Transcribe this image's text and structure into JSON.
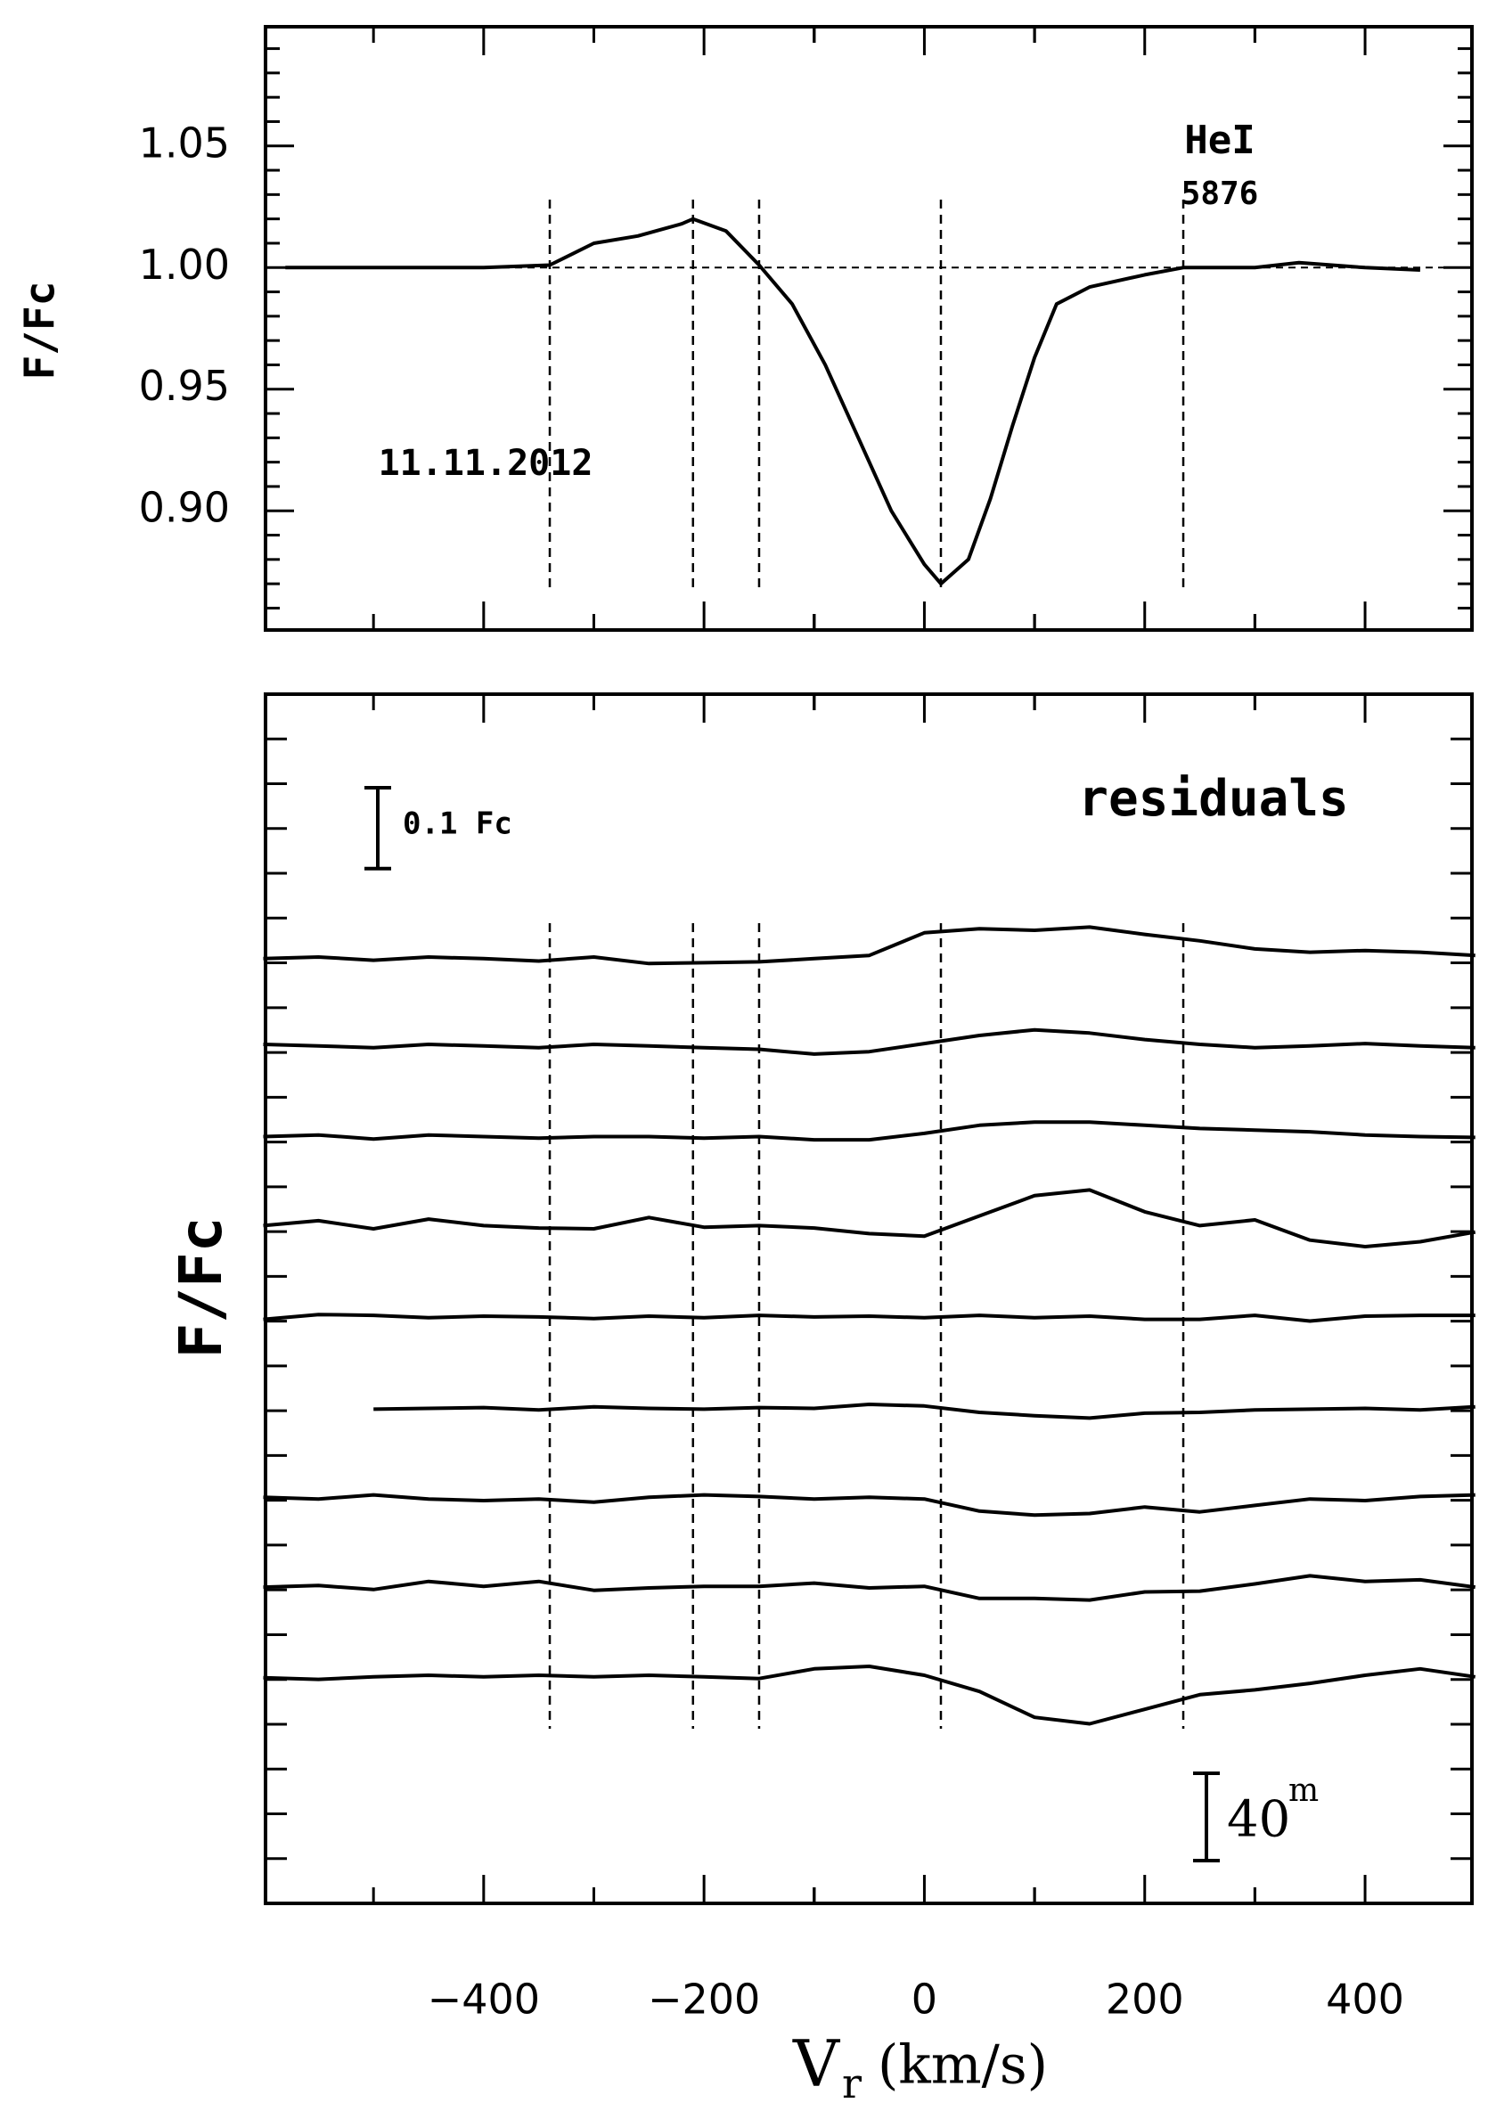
{
  "chart_data": [
    {
      "type": "line",
      "ylabel": "F/Fc",
      "annotations": [
        "HeI",
        "5876",
        "11.11.2012"
      ],
      "xlim": [
        -598,
        497
      ],
      "ylim": [
        0.851,
        1.099
      ],
      "xticks": [
        -400,
        -200,
        0,
        200,
        400
      ],
      "yticks": [
        {
          "value": 0.9,
          "label": "0.90"
        },
        0.95,
        {
          "value": 1.0,
          "label": "1.00"
        },
        1.05
      ],
      "hline": 1.0,
      "vlines": [
        -340,
        -210,
        -150,
        15,
        235
      ],
      "x": [
        -580,
        -500,
        -400,
        -340,
        -300,
        -260,
        -220,
        -210,
        -180,
        -150,
        -120,
        -90,
        -60,
        -30,
        0,
        15,
        40,
        60,
        80,
        100,
        120,
        150,
        200,
        235,
        300,
        340,
        400,
        450
      ],
      "series": [
        {
          "color": "#000000",
          "values": [
            1.0,
            1.0,
            1.0,
            1.001,
            1.01,
            1.013,
            1.018,
            1.02,
            1.015,
            1.001,
            0.985,
            0.96,
            0.93,
            0.9,
            0.878,
            0.87,
            0.88,
            0.905,
            0.935,
            0.963,
            0.985,
            0.992,
            0.997,
            1.0,
            1.0,
            1.002,
            1.0,
            0.999
          ]
        }
      ]
    },
    {
      "type": "line",
      "ylabel": "F/Fc",
      "annotations": [
        "residuals"
      ],
      "scale_bar": {
        "value": 0.1,
        "label": "0.1 Fc"
      },
      "time_bar": {
        "number": "40",
        "unit": "m"
      },
      "xlabel": {
        "main": "V",
        "sub": "r",
        "rest": "(km/s)"
      },
      "xlim": [
        -598,
        497
      ],
      "ylim": [
        0,
        1.495
      ],
      "xticks": [
        {
          "value": -400,
          "label": "−400"
        },
        {
          "value": -200,
          "label": "−200"
        },
        0,
        200,
        400
      ],
      "vlines": [
        -340,
        -210,
        -150,
        15,
        235
      ],
      "x": [
        -600,
        -550,
        -500,
        -450,
        -400,
        -350,
        -300,
        -250,
        -200,
        -150,
        -100,
        -50,
        0,
        50,
        100,
        150,
        200,
        250,
        300,
        350,
        400,
        450,
        500
      ],
      "series": [
        {
          "color": "#000000",
          "values": [
            1.168,
            1.17,
            1.166,
            1.17,
            1.168,
            1.165,
            1.17,
            1.162,
            1.163,
            1.164,
            1.168,
            1.172,
            1.2,
            1.205,
            1.203,
            1.207,
            1.198,
            1.19,
            1.18,
            1.176,
            1.178,
            1.176,
            1.172
          ]
        },
        {
          "color": "#000000",
          "values": [
            1.062,
            1.06,
            1.058,
            1.062,
            1.06,
            1.058,
            1.062,
            1.06,
            1.058,
            1.056,
            1.05,
            1.053,
            1.063,
            1.073,
            1.08,
            1.076,
            1.068,
            1.062,
            1.058,
            1.06,
            1.063,
            1.06,
            1.058
          ]
        },
        {
          "color": "#000000",
          "values": [
            0.948,
            0.95,
            0.945,
            0.95,
            0.948,
            0.946,
            0.948,
            0.948,
            0.946,
            0.948,
            0.944,
            0.944,
            0.952,
            0.962,
            0.966,
            0.966,
            0.962,
            0.958,
            0.956,
            0.954,
            0.95,
            0.948,
            0.947
          ]
        },
        {
          "color": "#000000",
          "values": [
            0.838,
            0.844,
            0.834,
            0.846,
            0.838,
            0.835,
            0.834,
            0.848,
            0.836,
            0.838,
            0.835,
            0.828,
            0.825,
            0.85,
            0.875,
            0.882,
            0.855,
            0.838,
            0.845,
            0.82,
            0.812,
            0.818,
            0.83
          ]
        },
        {
          "color": "#000000",
          "values": [
            0.722,
            0.728,
            0.727,
            0.724,
            0.726,
            0.725,
            0.723,
            0.726,
            0.724,
            0.727,
            0.725,
            0.726,
            0.724,
            0.727,
            0.724,
            0.726,
            0.722,
            0.722,
            0.727,
            0.72,
            0.726,
            0.727,
            0.727
          ]
        },
        {
          "color": "#000000",
          "values": [
            null,
            null,
            0.611,
            0.612,
            0.613,
            0.61,
            0.614,
            0.612,
            0.611,
            0.613,
            0.612,
            0.617,
            0.615,
            0.607,
            0.603,
            0.6,
            0.606,
            0.607,
            0.61,
            0.611,
            0.612,
            0.61,
            0.614
          ]
        },
        {
          "color": "#000000",
          "values": [
            0.502,
            0.5,
            0.505,
            0.5,
            0.498,
            0.5,
            0.496,
            0.502,
            0.505,
            0.503,
            0.5,
            0.502,
            0.5,
            0.485,
            0.48,
            0.482,
            0.49,
            0.484,
            0.492,
            0.5,
            0.498,
            0.503,
            0.505
          ]
        },
        {
          "color": "#000000",
          "values": [
            0.391,
            0.393,
            0.388,
            0.398,
            0.392,
            0.398,
            0.387,
            0.39,
            0.392,
            0.392,
            0.396,
            0.39,
            0.392,
            0.377,
            0.377,
            0.375,
            0.385,
            0.386,
            0.395,
            0.405,
            0.398,
            0.4,
            0.391
          ]
        },
        {
          "color": "#000000",
          "values": [
            0.279,
            0.277,
            0.28,
            0.282,
            0.28,
            0.282,
            0.28,
            0.282,
            0.28,
            0.278,
            0.29,
            0.293,
            0.282,
            0.262,
            0.23,
            0.222,
            0.24,
            0.258,
            0.264,
            0.272,
            0.282,
            0.29,
            0.28
          ]
        }
      ]
    }
  ]
}
